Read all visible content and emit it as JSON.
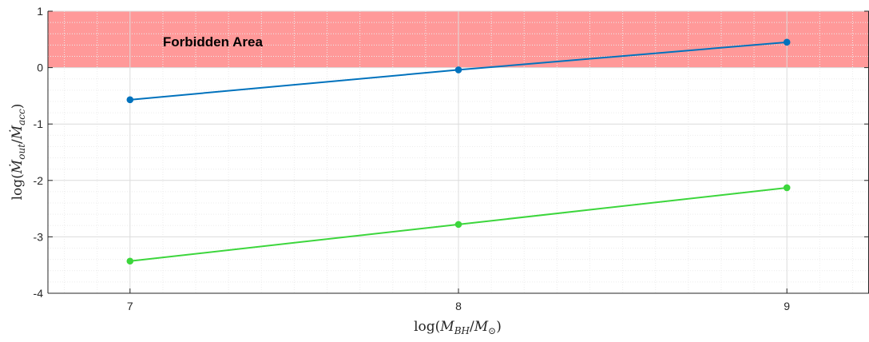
{
  "chart_data": {
    "type": "line",
    "title": "",
    "xlabel": "log(M_BH/M_⊙)",
    "ylabel": "log(Ṁ_out/Ṁ_acc)",
    "x": [
      7,
      8,
      9
    ],
    "xlim": [
      6.75,
      9.25
    ],
    "ylim": [
      -4,
      1
    ],
    "xticks": [
      7,
      8,
      9
    ],
    "yticks": [
      -4,
      -3,
      -2,
      -1,
      0,
      1
    ],
    "grid": true,
    "minor_grid": true,
    "legend": "none",
    "series": [
      {
        "values": [
          -0.57,
          -0.04,
          0.45
        ],
        "color": "#0072BD",
        "marker": "circle"
      },
      {
        "values": [
          -3.43,
          -2.78,
          -2.13
        ],
        "color": "#3CD63C",
        "marker": "circle"
      }
    ],
    "shaded_region": {
      "y_from": 0,
      "y_to": 1,
      "color": "#FF9999",
      "label": "Forbidden Area",
      "label_x": 7.1,
      "label_y": 0.38
    }
  }
}
